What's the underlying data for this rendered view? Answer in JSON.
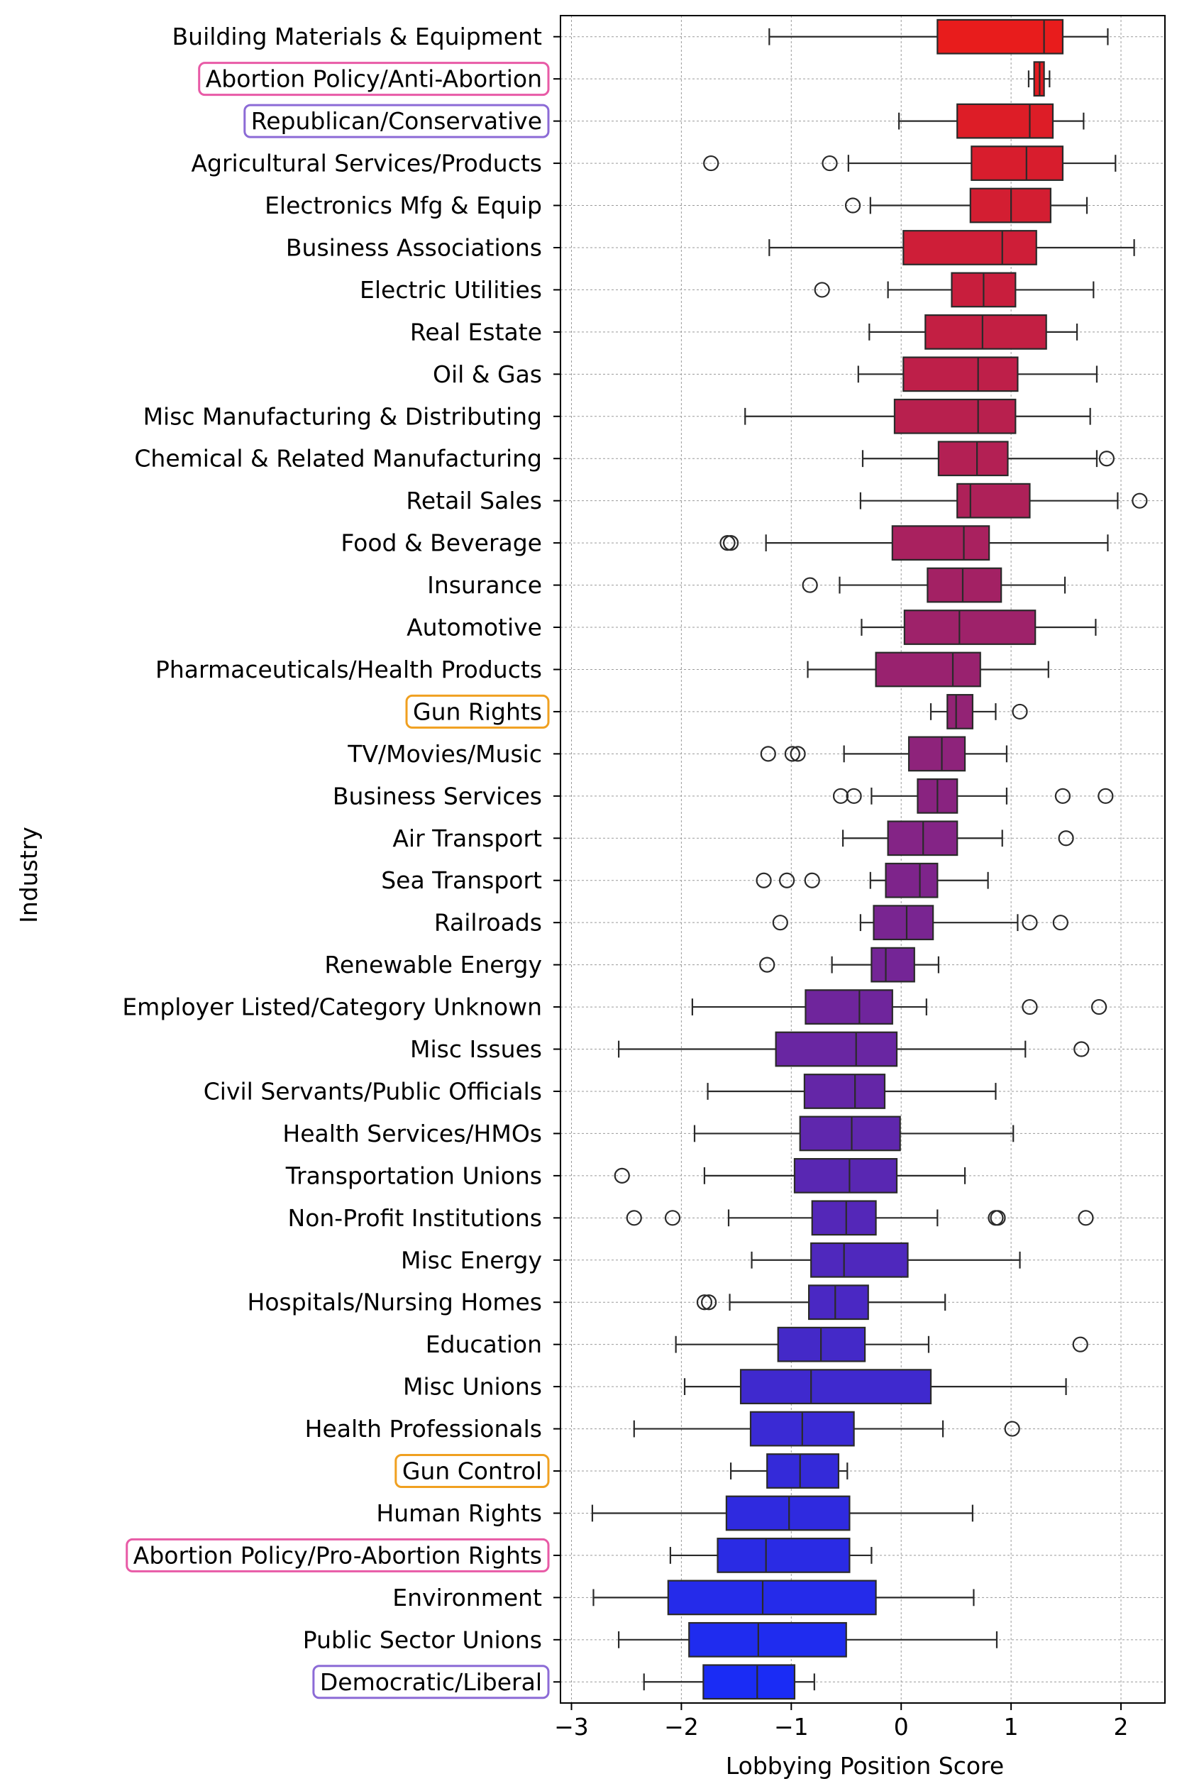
{
  "chart_data": {
    "type": "boxplot",
    "orientation": "horizontal",
    "xlabel": "Lobbying Position Score",
    "ylabel": "Industry",
    "xlim": [
      -3.1,
      2.4
    ],
    "xticks": [
      -3,
      -2,
      -1,
      0,
      1,
      2
    ],
    "xtick_labels": [
      "−3",
      "−2",
      "−1",
      "0",
      "1",
      "2"
    ],
    "grid": true,
    "highlight_colors": {
      "pink": "#e85aa6",
      "purple": "#8c6bd6",
      "orange": "#f0a020"
    },
    "color_scale": {
      "high": "#e81c1c",
      "low": "#1a2cf5"
    },
    "series": [
      {
        "label": "Building Materials & Equipment",
        "wlo": -1.2,
        "q1": 0.33,
        "median": 1.3,
        "q3": 1.47,
        "whi": 1.88,
        "outliers": [],
        "highlight": null
      },
      {
        "label": "Abortion Policy/Anti-Abortion",
        "wlo": 1.16,
        "q1": 1.21,
        "median": 1.26,
        "q3": 1.3,
        "whi": 1.35,
        "outliers": [],
        "highlight": "pink"
      },
      {
        "label": "Republican/Conservative",
        "wlo": -0.02,
        "q1": 0.51,
        "median": 1.17,
        "q3": 1.38,
        "whi": 1.66,
        "outliers": [],
        "highlight": "purple"
      },
      {
        "label": "Agricultural Services/Products",
        "wlo": -0.48,
        "q1": 0.64,
        "median": 1.14,
        "q3": 1.47,
        "whi": 1.95,
        "outliers": [
          -1.73,
          -0.65
        ],
        "highlight": null
      },
      {
        "label": "Electronics Mfg & Equip",
        "wlo": -0.28,
        "q1": 0.63,
        "median": 1.0,
        "q3": 1.36,
        "whi": 1.69,
        "outliers": [
          -0.44
        ],
        "highlight": null
      },
      {
        "label": "Business Associations",
        "wlo": -1.2,
        "q1": 0.02,
        "median": 0.92,
        "q3": 1.23,
        "whi": 2.12,
        "outliers": [],
        "highlight": null
      },
      {
        "label": "Electric Utilities",
        "wlo": -0.12,
        "q1": 0.46,
        "median": 0.75,
        "q3": 1.04,
        "whi": 1.75,
        "outliers": [
          -0.72
        ],
        "highlight": null
      },
      {
        "label": "Real Estate",
        "wlo": -0.29,
        "q1": 0.22,
        "median": 0.74,
        "q3": 1.32,
        "whi": 1.6,
        "outliers": [],
        "highlight": null
      },
      {
        "label": "Oil & Gas",
        "wlo": -0.39,
        "q1": 0.02,
        "median": 0.7,
        "q3": 1.06,
        "whi": 1.78,
        "outliers": [],
        "highlight": null
      },
      {
        "label": "Misc Manufacturing & Distributing",
        "wlo": -1.42,
        "q1": -0.06,
        "median": 0.7,
        "q3": 1.04,
        "whi": 1.72,
        "outliers": [],
        "highlight": null
      },
      {
        "label": "Chemical & Related Manufacturing",
        "wlo": -0.35,
        "q1": 0.34,
        "median": 0.69,
        "q3": 0.97,
        "whi": 1.78,
        "outliers": [
          1.87
        ],
        "highlight": null
      },
      {
        "label": "Retail Sales",
        "wlo": -0.37,
        "q1": 0.51,
        "median": 0.63,
        "q3": 1.17,
        "whi": 1.97,
        "outliers": [
          2.17
        ],
        "highlight": null
      },
      {
        "label": "Food & Beverage",
        "wlo": -1.23,
        "q1": -0.08,
        "median": 0.57,
        "q3": 0.8,
        "whi": 1.88,
        "outliers": [
          -1.58,
          -1.55
        ],
        "highlight": null
      },
      {
        "label": "Insurance",
        "wlo": -0.56,
        "q1": 0.24,
        "median": 0.56,
        "q3": 0.91,
        "whi": 1.49,
        "outliers": [
          -0.83
        ],
        "highlight": null
      },
      {
        "label": "Automotive",
        "wlo": -0.36,
        "q1": 0.03,
        "median": 0.53,
        "q3": 1.22,
        "whi": 1.77,
        "outliers": [],
        "highlight": null
      },
      {
        "label": "Pharmaceuticals/Health Products",
        "wlo": -0.85,
        "q1": -0.23,
        "median": 0.47,
        "q3": 0.72,
        "whi": 1.34,
        "outliers": [],
        "highlight": null
      },
      {
        "label": "Gun Rights",
        "wlo": 0.27,
        "q1": 0.42,
        "median": 0.5,
        "q3": 0.65,
        "whi": 0.86,
        "outliers": [
          1.08
        ],
        "highlight": "orange"
      },
      {
        "label": "TV/Movies/Music",
        "wlo": -0.52,
        "q1": 0.07,
        "median": 0.37,
        "q3": 0.58,
        "whi": 0.96,
        "outliers": [
          -1.21,
          -0.99,
          -0.94
        ],
        "highlight": null
      },
      {
        "label": "Business Services",
        "wlo": -0.27,
        "q1": 0.15,
        "median": 0.33,
        "q3": 0.51,
        "whi": 0.96,
        "outliers": [
          -0.55,
          -0.43,
          1.47,
          1.86
        ],
        "highlight": null
      },
      {
        "label": "Air Transport",
        "wlo": -0.53,
        "q1": -0.12,
        "median": 0.2,
        "q3": 0.51,
        "whi": 0.92,
        "outliers": [
          1.5
        ],
        "highlight": null
      },
      {
        "label": "Sea Transport",
        "wlo": -0.28,
        "q1": -0.14,
        "median": 0.17,
        "q3": 0.33,
        "whi": 0.79,
        "outliers": [
          -1.25,
          -1.04,
          -0.81
        ],
        "highlight": null
      },
      {
        "label": "Railroads",
        "wlo": -0.37,
        "q1": -0.25,
        "median": 0.05,
        "q3": 0.29,
        "whi": 1.06,
        "outliers": [
          -1.1,
          1.17,
          1.45
        ],
        "highlight": null
      },
      {
        "label": "Renewable Energy",
        "wlo": -0.63,
        "q1": -0.27,
        "median": -0.14,
        "q3": 0.12,
        "whi": 0.34,
        "outliers": [
          -1.22
        ],
        "highlight": null
      },
      {
        "label": "Employer Listed/Category Unknown",
        "wlo": -1.9,
        "q1": -0.87,
        "median": -0.38,
        "q3": -0.08,
        "whi": 0.23,
        "outliers": [
          1.17,
          1.8
        ],
        "highlight": null
      },
      {
        "label": "Misc Issues",
        "wlo": -2.57,
        "q1": -1.14,
        "median": -0.41,
        "q3": -0.04,
        "whi": 1.13,
        "outliers": [
          1.64
        ],
        "highlight": null
      },
      {
        "label": "Civil Servants/Public Officials",
        "wlo": -1.76,
        "q1": -0.88,
        "median": -0.42,
        "q3": -0.15,
        "whi": 0.86,
        "outliers": [],
        "highlight": null
      },
      {
        "label": "Health Services/HMOs",
        "wlo": -1.88,
        "q1": -0.92,
        "median": -0.45,
        "q3": -0.01,
        "whi": 1.02,
        "outliers": [],
        "highlight": null
      },
      {
        "label": "Transportation Unions",
        "wlo": -1.79,
        "q1": -0.97,
        "median": -0.47,
        "q3": -0.04,
        "whi": 0.58,
        "outliers": [
          -2.54
        ],
        "highlight": null
      },
      {
        "label": "Non-Profit Institutions",
        "wlo": -1.57,
        "q1": -0.81,
        "median": -0.5,
        "q3": -0.23,
        "whi": 0.33,
        "outliers": [
          -2.43,
          -2.08,
          0.86,
          0.88,
          1.68
        ],
        "highlight": null
      },
      {
        "label": "Misc Energy",
        "wlo": -1.36,
        "q1": -0.82,
        "median": -0.52,
        "q3": 0.06,
        "whi": 1.08,
        "outliers": [],
        "highlight": null
      },
      {
        "label": "Hospitals/Nursing Homes",
        "wlo": -1.56,
        "q1": -0.84,
        "median": -0.6,
        "q3": -0.3,
        "whi": 0.4,
        "outliers": [
          -1.79,
          -1.75
        ],
        "highlight": null
      },
      {
        "label": "Education",
        "wlo": -2.05,
        "q1": -1.12,
        "median": -0.73,
        "q3": -0.33,
        "whi": 0.25,
        "outliers": [
          1.63
        ],
        "highlight": null
      },
      {
        "label": "Misc Unions",
        "wlo": -1.97,
        "q1": -1.46,
        "median": -0.82,
        "q3": 0.27,
        "whi": 1.5,
        "outliers": [],
        "highlight": null
      },
      {
        "label": "Health Professionals",
        "wlo": -2.43,
        "q1": -1.37,
        "median": -0.9,
        "q3": -0.43,
        "whi": 0.38,
        "outliers": [
          1.01
        ],
        "highlight": null
      },
      {
        "label": "Gun Control",
        "wlo": -1.55,
        "q1": -1.22,
        "median": -0.92,
        "q3": -0.57,
        "whi": -0.49,
        "outliers": [],
        "highlight": "orange"
      },
      {
        "label": "Human Rights",
        "wlo": -2.81,
        "q1": -1.59,
        "median": -1.02,
        "q3": -0.47,
        "whi": 0.65,
        "outliers": [],
        "highlight": null
      },
      {
        "label": "Abortion Policy/Pro-Abortion Rights",
        "wlo": -2.1,
        "q1": -1.67,
        "median": -1.23,
        "q3": -0.47,
        "whi": -0.27,
        "outliers": [],
        "highlight": "pink"
      },
      {
        "label": "Environment",
        "wlo": -2.8,
        "q1": -2.12,
        "median": -1.26,
        "q3": -0.23,
        "whi": 0.66,
        "outliers": [],
        "highlight": null
      },
      {
        "label": "Public Sector Unions",
        "wlo": -2.57,
        "q1": -1.93,
        "median": -1.3,
        "q3": -0.5,
        "whi": 0.87,
        "outliers": [],
        "highlight": null
      },
      {
        "label": "Democratic/Liberal",
        "wlo": -2.34,
        "q1": -1.8,
        "median": -1.31,
        "q3": -0.97,
        "whi": -0.79,
        "outliers": [],
        "highlight": "purple"
      }
    ]
  }
}
